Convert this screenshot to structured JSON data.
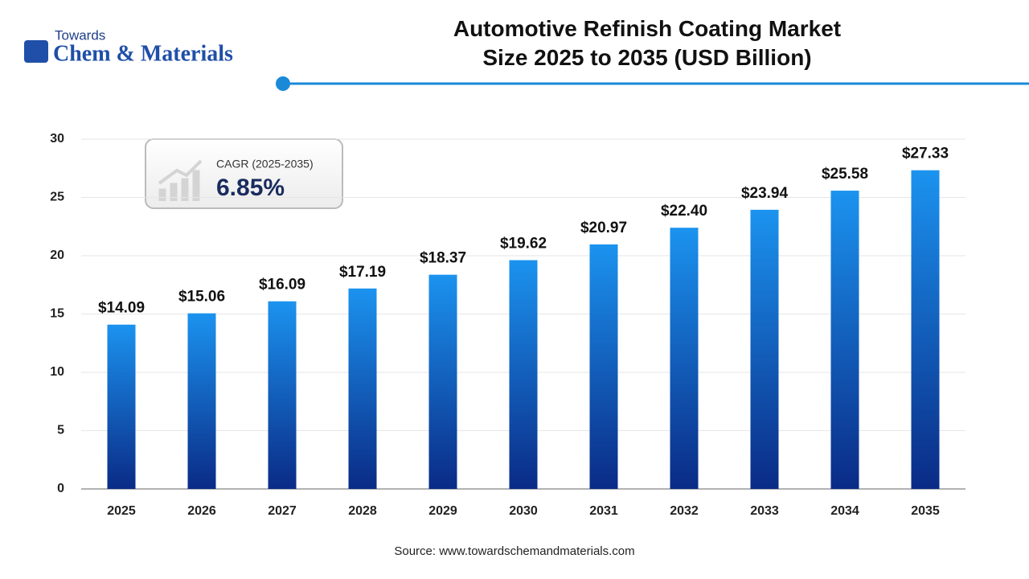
{
  "logo": {
    "top": "Towards",
    "main": "Chem & Materials"
  },
  "chart_data": {
    "type": "bar",
    "title": "Automotive Refinish Coating Market Size 2025 to 2035 (USD Billion)",
    "categories": [
      "2025",
      "2026",
      "2027",
      "2028",
      "2029",
      "2030",
      "2031",
      "2032",
      "2033",
      "2034",
      "2035"
    ],
    "values": [
      14.09,
      15.06,
      16.09,
      17.19,
      18.37,
      19.62,
      20.97,
      22.4,
      23.94,
      25.58,
      27.33
    ],
    "value_labels": [
      "$14.09",
      "$15.06",
      "$16.09",
      "$17.19",
      "$18.37",
      "$19.62",
      "$20.97",
      "$22.40",
      "$23.94",
      "$25.58",
      "$27.33"
    ],
    "colors": [
      "#1b93ef",
      "#0a2b86"
    ],
    "ylim": [
      0,
      30
    ],
    "yticks": [
      0,
      5,
      10,
      15,
      20,
      25,
      30
    ],
    "grid": true,
    "annotation": {
      "label": "CAGR (2025-2035)",
      "value": "6.85%"
    },
    "source": "Source: www.towardschemandmaterials.com"
  }
}
